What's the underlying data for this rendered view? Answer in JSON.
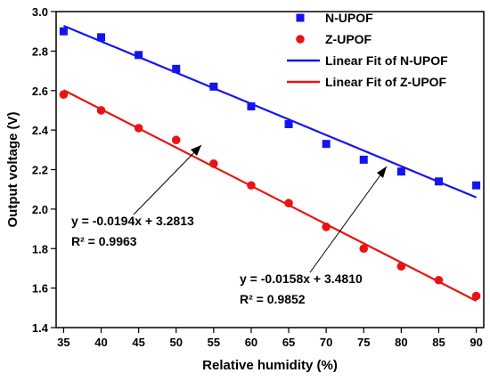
{
  "chart_data": {
    "type": "scatter",
    "title": "",
    "xlabel": "Relative humidity (%)",
    "ylabel": "Output voltage (V)",
    "xlim": [
      34,
      91
    ],
    "ylim": [
      1.4,
      3.0
    ],
    "x_ticks": [
      "35",
      "40",
      "45",
      "50",
      "55",
      "60",
      "65",
      "70",
      "75",
      "80",
      "85",
      "90"
    ],
    "y_ticks": [
      "1.4",
      "1.6",
      "1.8",
      "2.0",
      "2.2",
      "2.4",
      "2.6",
      "2.8",
      "3.0"
    ],
    "grid": false,
    "legend_position": "top-right",
    "series": [
      {
        "name": "N-UPOF",
        "marker": "square",
        "color": "#1414f0",
        "x": [
          35,
          40,
          45,
          50,
          55,
          60,
          65,
          70,
          75,
          80,
          85,
          90
        ],
        "y": [
          2.9,
          2.87,
          2.78,
          2.71,
          2.62,
          2.52,
          2.43,
          2.33,
          2.25,
          2.19,
          2.14,
          2.12
        ]
      },
      {
        "name": "Z-UPOF",
        "marker": "circle",
        "color": "#e81414",
        "x": [
          35,
          40,
          45,
          50,
          55,
          60,
          65,
          70,
          75,
          80,
          85,
          90
        ],
        "y": [
          2.58,
          2.5,
          2.41,
          2.35,
          2.23,
          2.12,
          2.03,
          1.91,
          1.8,
          1.71,
          1.64,
          1.56
        ]
      }
    ],
    "fits": [
      {
        "name": "Linear Fit of N-UPOF",
        "color": "#1414f0",
        "x_range": [
          35,
          90
        ],
        "slope": -0.0158,
        "intercept": 3.481
      },
      {
        "name": "Linear Fit of Z-UPOF",
        "color": "#e81414",
        "x_range": [
          35,
          90
        ],
        "slope": -0.0194,
        "intercept": 3.2813
      }
    ],
    "annotations": [
      {
        "equation": "y = -0.0194x + 3.2813",
        "r2": "R² = 0.9963",
        "points_to": "Linear Fit of Z-UPOF"
      },
      {
        "equation": "y = -0.0158x + 3.4810",
        "r2": "R² = 0.9852",
        "points_to": "Linear Fit of N-UPOF"
      }
    ]
  }
}
